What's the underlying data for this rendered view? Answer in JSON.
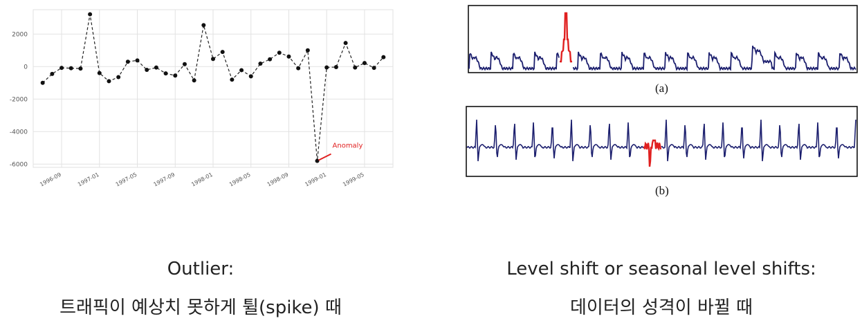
{
  "colors": {
    "line": "#222222",
    "grid": "#e2e2e2",
    "anomaly": "#e02020",
    "signal": "#1c1f6e",
    "tick_text": "#555555"
  },
  "chart_data": [
    {
      "type": "line",
      "x": [
        "1996-07",
        "1996-08",
        "1996-09",
        "1996-10",
        "1996-11",
        "1996-12",
        "1997-01",
        "1997-02",
        "1997-03",
        "1997-04",
        "1997-05",
        "1997-06",
        "1997-07",
        "1997-08",
        "1997-09",
        "1997-10",
        "1997-11",
        "1997-12",
        "1998-01",
        "1998-02",
        "1998-03",
        "1998-04",
        "1998-05",
        "1998-06",
        "1998-07",
        "1998-08",
        "1998-09",
        "1998-10",
        "1998-11",
        "1998-12",
        "1999-01",
        "1999-02",
        "1999-03",
        "1999-04",
        "1999-05",
        "1999-06",
        "1999-07"
      ],
      "series": [
        {
          "values": [
            -1000,
            -450,
            -80,
            -100,
            -120,
            3220,
            -400,
            -900,
            -650,
            300,
            380,
            -200,
            -60,
            -420,
            -550,
            150,
            -850,
            2550,
            470,
            900,
            -800,
            -220,
            -600,
            180,
            450,
            850,
            620,
            -100,
            1000,
            -5800,
            -50,
            -30,
            1450,
            -60,
            220,
            -80,
            580
          ]
        }
      ],
      "xticks": [
        "1996-09",
        "1997-01",
        "1997-05",
        "1997-09",
        "1998-01",
        "1998-05",
        "1998-09",
        "1999-01",
        "1999-05"
      ],
      "yticks": [
        2000,
        0,
        -2000,
        -4000,
        -6000
      ],
      "ylim": [
        -6200,
        3500
      ],
      "grid": true,
      "annotation": {
        "text": "Anomaly",
        "x": "1998-12",
        "y": -5800
      }
    },
    {
      "type": "line",
      "label": "(a)",
      "grid": false
    },
    {
      "type": "line",
      "label": "(b)",
      "grid": false
    }
  ],
  "captions": {
    "left_title": "Outlier:",
    "left_desc": "트래픽이 예상치 못하게 튈(spike) 때",
    "right_title": "Level shift or seasonal level shifts:",
    "right_desc": "데이터의 성격이 바뀔 때"
  }
}
